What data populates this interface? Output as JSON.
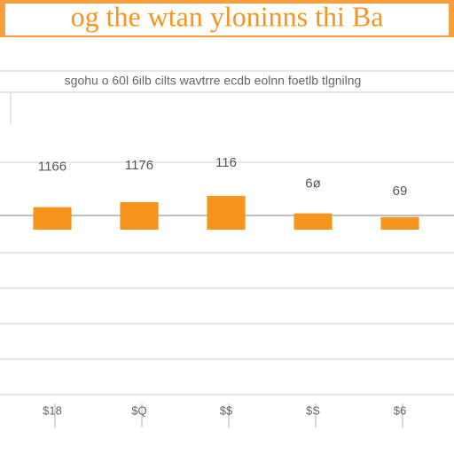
{
  "chart_data": {
    "type": "bar",
    "title": "og the wtan yloninns thi Ba",
    "subtitle": "sgohu o 60l 6ilb cilts wavtrre ecdb eolnn foetlb tlgnilng",
    "categories": [
      "$18",
      "$Q",
      "$$",
      "$S",
      "$6"
    ],
    "values": [
      18,
      22,
      27,
      13,
      10
    ],
    "labels": [
      "1166",
      "1176",
      "116",
      "6ø",
      "69"
    ],
    "color": "#f7941d",
    "ylim": [
      0,
      100
    ]
  }
}
